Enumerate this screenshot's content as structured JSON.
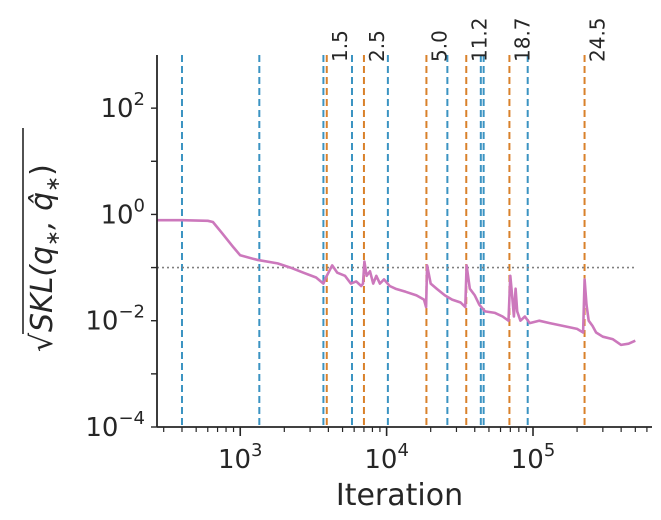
{
  "chart_data": {
    "type": "line",
    "title": "",
    "xlabel": "Iteration",
    "ylabel": "SKL(q*, q̂*)",
    "ylabel_display": {
      "radical": "√",
      "expression": "SKL(q",
      "star1": "∗",
      "sep": ", ",
      "qhat": "q̂",
      "star2": "∗",
      "close": ")"
    },
    "x_scale": "log",
    "y_scale": "log",
    "xlim": [
      270,
      650000
    ],
    "ylim": [
      0.0001,
      1000
    ],
    "x_ticks": [
      {
        "value": 1000,
        "base": "10",
        "exp": "3"
      },
      {
        "value": 10000,
        "base": "10",
        "exp": "4"
      },
      {
        "value": 100000,
        "base": "10",
        "exp": "5"
      }
    ],
    "y_ticks": [
      {
        "value": 0.0001,
        "base": "10",
        "exp": "−4"
      },
      {
        "value": 0.01,
        "base": "10",
        "exp": "−2"
      },
      {
        "value": 1,
        "base": "10",
        "exp": "0"
      },
      {
        "value": 100,
        "base": "10",
        "exp": "2"
      }
    ],
    "grid": false,
    "reference_line": {
      "y": 0.1,
      "style": "dotted",
      "color": "#808080"
    },
    "series": [
      {
        "color": "#cc78bc",
        "points": [
          [
            270,
            0.78
          ],
          [
            400,
            0.78
          ],
          [
            600,
            0.76
          ],
          [
            650,
            0.72
          ],
          [
            750,
            0.45
          ],
          [
            900,
            0.24
          ],
          [
            1000,
            0.17
          ],
          [
            1300,
            0.14
          ],
          [
            1800,
            0.12
          ],
          [
            2200,
            0.1
          ],
          [
            2700,
            0.08
          ],
          [
            3300,
            0.065
          ],
          [
            3700,
            0.05
          ],
          [
            3850,
            0.065
          ],
          [
            4000,
            0.08
          ],
          [
            4250,
            0.11
          ],
          [
            4600,
            0.08
          ],
          [
            5200,
            0.07
          ],
          [
            5700,
            0.05
          ],
          [
            6200,
            0.055
          ],
          [
            6700,
            0.045
          ],
          [
            6900,
            0.05
          ],
          [
            7050,
            0.13
          ],
          [
            7300,
            0.07
          ],
          [
            7700,
            0.085
          ],
          [
            8100,
            0.05
          ],
          [
            8500,
            0.07
          ],
          [
            9000,
            0.05
          ],
          [
            9600,
            0.06
          ],
          [
            10500,
            0.045
          ],
          [
            11500,
            0.04
          ],
          [
            13500,
            0.035
          ],
          [
            16000,
            0.03
          ],
          [
            18000,
            0.025
          ],
          [
            18600,
            0.018
          ],
          [
            18900,
            0.11
          ],
          [
            20000,
            0.05
          ],
          [
            22000,
            0.04
          ],
          [
            25000,
            0.03
          ],
          [
            28000,
            0.025
          ],
          [
            32000,
            0.022
          ],
          [
            34500,
            0.018
          ],
          [
            35200,
            0.11
          ],
          [
            37000,
            0.04
          ],
          [
            40000,
            0.03
          ],
          [
            43000,
            0.02
          ],
          [
            47000,
            0.015
          ],
          [
            55000,
            0.014
          ],
          [
            62000,
            0.012
          ],
          [
            68000,
            0.01
          ],
          [
            70000,
            0.07
          ],
          [
            72000,
            0.03
          ],
          [
            74000,
            0.012
          ],
          [
            76000,
            0.04
          ],
          [
            78000,
            0.015
          ],
          [
            82000,
            0.01
          ],
          [
            88000,
            0.012
          ],
          [
            95000,
            0.009
          ],
          [
            110000,
            0.01
          ],
          [
            130000,
            0.009
          ],
          [
            160000,
            0.008
          ],
          [
            200000,
            0.007
          ],
          [
            220000,
            0.006
          ],
          [
            225000,
            0.06
          ],
          [
            232000,
            0.02
          ],
          [
            240000,
            0.01
          ],
          [
            255000,
            0.008
          ],
          [
            270000,
            0.006
          ],
          [
            300000,
            0.005
          ],
          [
            350000,
            0.0045
          ],
          [
            400000,
            0.0035
          ],
          [
            450000,
            0.0037
          ],
          [
            500000,
            0.0042
          ]
        ]
      }
    ],
    "vlines_blue": {
      "color": "#3b93c2",
      "x": [
        400,
        1350,
        3700,
        5800,
        10200,
        26000,
        44000,
        46000,
        92000
      ]
    },
    "vlines_orange": {
      "color": "#d9812b",
      "x": [
        3900,
        7000,
        18700,
        35000,
        69000,
        225000
      ],
      "labels": [
        "1.5",
        "2.5",
        "5.0",
        "11.2",
        "18.7",
        "24.5"
      ]
    }
  }
}
